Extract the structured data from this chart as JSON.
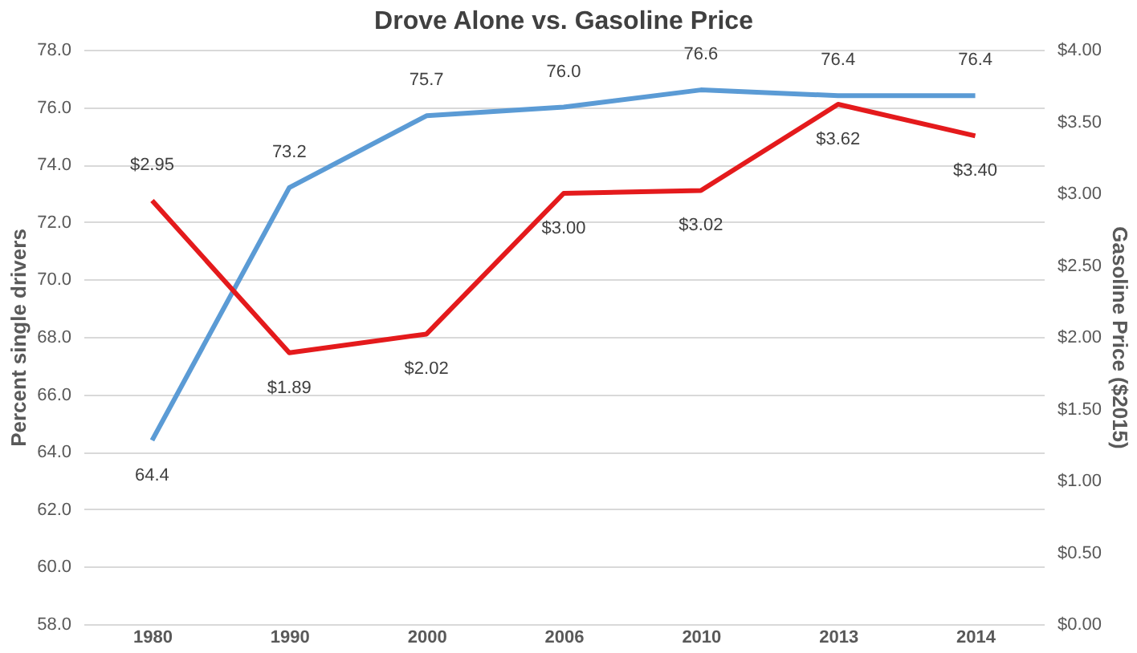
{
  "chart_data": {
    "type": "line",
    "title": "Drove Alone vs. Gasoline Price",
    "ylabel": "Percent single drivers",
    "y2label": "Gasoline Price ($2015)",
    "categories": [
      "1980",
      "1990",
      "2000",
      "2006",
      "2010",
      "2013",
      "2014"
    ],
    "series": [
      {
        "color": "#5b9bd5",
        "values": [
          64.4,
          73.2,
          75.7,
          76.0,
          76.6,
          76.4,
          76.4
        ],
        "value_labels": [
          "64.4",
          "73.2",
          "75.7",
          "76.0",
          "76.6",
          "76.4",
          "76.4"
        ]
      },
      {
        "color": "#e41a1c",
        "axis": "y2",
        "values": [
          2.95,
          1.89,
          2.02,
          3.0,
          3.02,
          3.62,
          3.4
        ],
        "value_labels": [
          "$2.95",
          "$1.89",
          "$2.02",
          "$3.00",
          "$3.02",
          "$3.62",
          "$3.40"
        ]
      }
    ],
    "ylim": [
      58,
      78
    ],
    "yticks": [
      {
        "value": 58,
        "label": "58.0"
      },
      {
        "value": 60,
        "label": "60.0"
      },
      {
        "value": 62,
        "label": "62.0"
      },
      {
        "value": 64,
        "label": "64.0"
      },
      {
        "value": 66,
        "label": "66.0"
      },
      {
        "value": 68,
        "label": "68.0"
      },
      {
        "value": 70,
        "label": "70.0"
      },
      {
        "value": 72,
        "label": "72.0"
      },
      {
        "value": 74,
        "label": "74.0"
      },
      {
        "value": 76,
        "label": "76.0"
      },
      {
        "value": 78,
        "label": "78.0"
      }
    ],
    "y2lim": [
      0,
      4
    ],
    "y2ticks": [
      {
        "value": 0,
        "label": "$0.00"
      },
      {
        "value": 0.5,
        "label": "$0.50"
      },
      {
        "value": 1,
        "label": "$1.00"
      },
      {
        "value": 1.5,
        "label": "$1.50"
      },
      {
        "value": 2,
        "label": "$2.00"
      },
      {
        "value": 2.5,
        "label": "$2.50"
      },
      {
        "value": 3,
        "label": "$3.00"
      },
      {
        "value": 3.5,
        "label": "$3.50"
      },
      {
        "value": 4,
        "label": "$4.00"
      }
    ],
    "grid": "y",
    "marker": "none",
    "line_style": "solid"
  }
}
